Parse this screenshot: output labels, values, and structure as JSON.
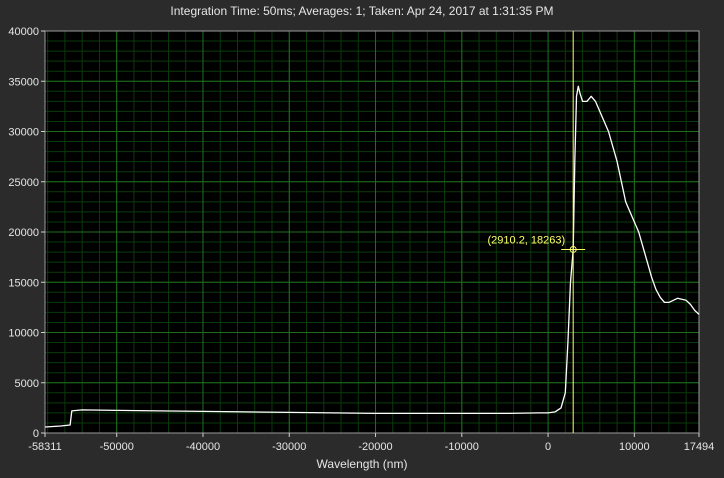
{
  "chart_data": {
    "type": "line",
    "title": "Integration Time: 50ms;  Averages: 1;  Taken: Apr 24, 2017 at 1:31:35 PM",
    "xlabel": "Wavelength (nm)",
    "ylabel": "",
    "xlim": [
      -58311,
      17494
    ],
    "ylim": [
      0,
      40000
    ],
    "grid": true,
    "x_ticks": [
      -58311,
      -50000,
      -40000,
      -30000,
      -20000,
      -10000,
      0,
      10000,
      17494
    ],
    "x_tick_labels": [
      "-58311",
      "-50000",
      "-40000",
      "-30000",
      "-20000",
      "-10000",
      "0",
      "10000",
      "17494"
    ],
    "y_ticks": [
      0,
      5000,
      10000,
      15000,
      20000,
      25000,
      30000,
      35000,
      40000
    ],
    "y_tick_labels": [
      "0",
      "5000",
      "10000",
      "15000",
      "20000",
      "25000",
      "30000",
      "35000",
      "40000"
    ],
    "series": [
      {
        "color": "#ffffff",
        "x": [
          -58311,
          -56500,
          -55400,
          -55200,
          -54000,
          -50000,
          -45000,
          -40000,
          -35000,
          -30000,
          -25000,
          -20000,
          -15000,
          -10000,
          -5000,
          -1000,
          0,
          800,
          1500,
          2000,
          2300,
          2600,
          2910.2,
          3100,
          3300,
          3500,
          3700,
          4000,
          4500,
          5000,
          5500,
          6000,
          7000,
          8000,
          9000,
          10000,
          10500,
          11000,
          11500,
          12000,
          12500,
          13000,
          13500,
          14000,
          15000,
          15500,
          16000,
          16500,
          17000,
          17494
        ],
        "y": [
          600,
          700,
          800,
          2200,
          2300,
          2250,
          2200,
          2150,
          2100,
          2050,
          2000,
          1950,
          1950,
          1950,
          1950,
          2000,
          2000,
          2100,
          2500,
          4000,
          9000,
          15000,
          18263,
          27000,
          33500,
          34500,
          33800,
          33000,
          33000,
          33500,
          33000,
          32000,
          30000,
          27000,
          23000,
          21000,
          20000,
          18500,
          17000,
          15500,
          14300,
          13500,
          13000,
          13000,
          13400,
          13300,
          13200,
          12800,
          12200,
          11800
        ]
      }
    ],
    "annotations": [
      {
        "text": "(2910.2, 18263)",
        "x": 2910.2,
        "y": 18263,
        "color": "#ffff66"
      }
    ]
  }
}
